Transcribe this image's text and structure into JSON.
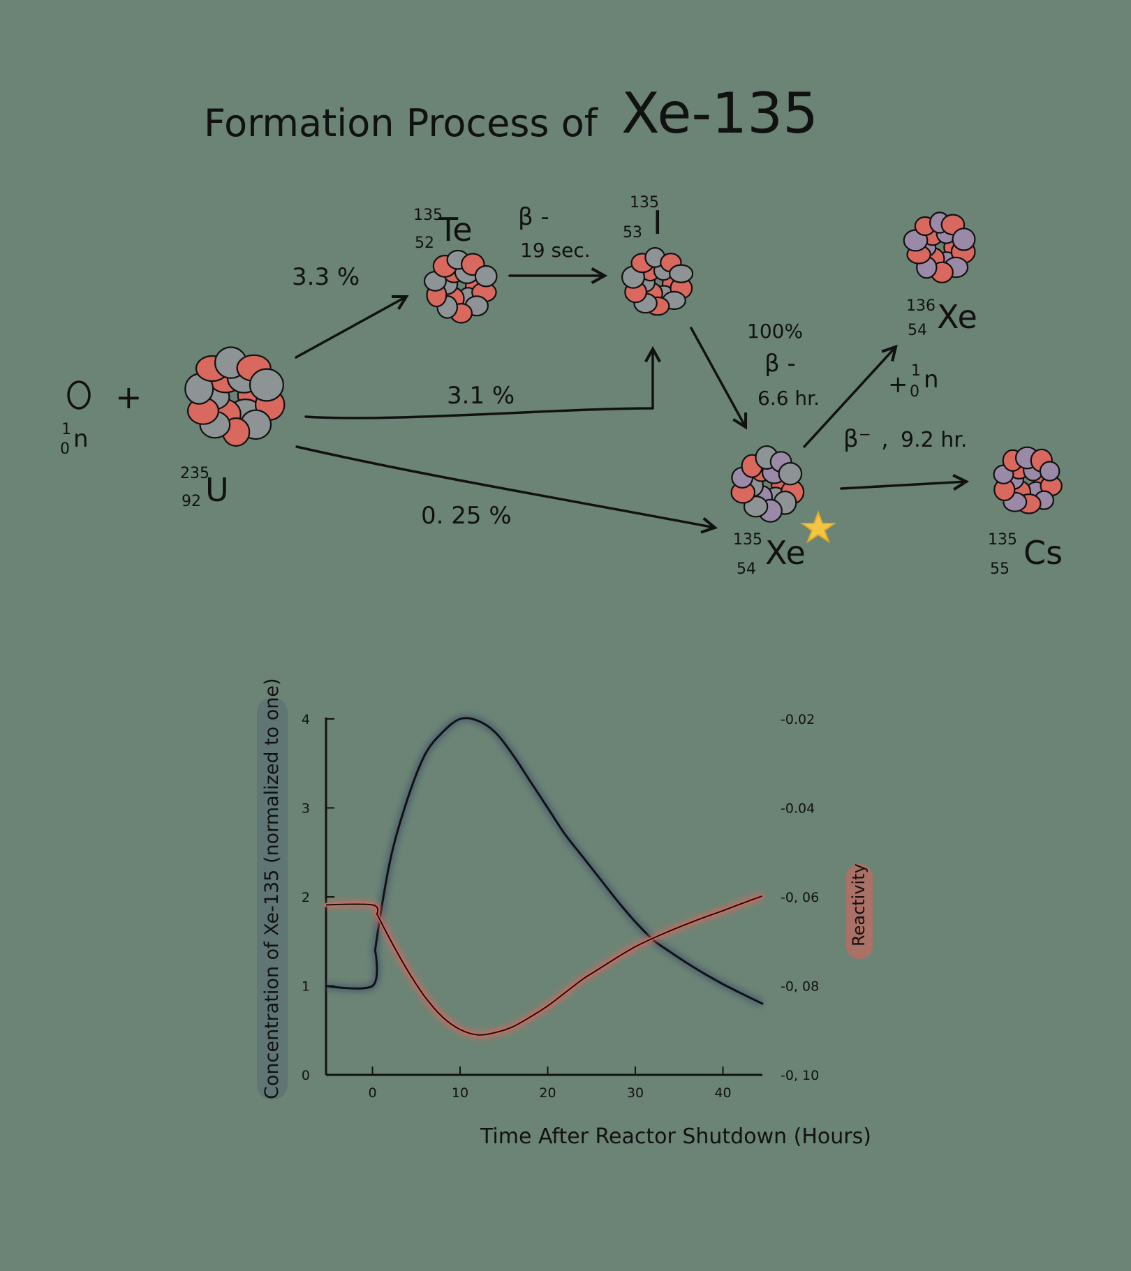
{
  "title": {
    "prefix": "Formation Process of",
    "emphasis": "Xe-135"
  },
  "colors": {
    "background": "#6c8475",
    "proton": "#d9685e",
    "neutron_gray": "#8e9496",
    "neutron_purple": "#9a8aa8",
    "star": "#f4c542",
    "concentration_line": "#111111",
    "concentration_glow": "#3d5070",
    "reactivity_line": "#d9685e"
  },
  "diagram": {
    "neutron": {
      "mass": "1",
      "atomic": "0",
      "symbol": "n"
    },
    "plus": "+",
    "u235": {
      "mass": "235",
      "atomic": "92",
      "symbol": "U"
    },
    "te135": {
      "mass": "135",
      "atomic": "52",
      "symbol": "Te"
    },
    "i135": {
      "mass": "135",
      "atomic": "53",
      "symbol": "I"
    },
    "xe135": {
      "mass": "135",
      "atomic": "54",
      "symbol": "Xe",
      "marker": "star-icon"
    },
    "xe136": {
      "mass": "136",
      "atomic": "54",
      "symbol": "Xe"
    },
    "cs135": {
      "mass": "135",
      "atomic": "55",
      "symbol": "Cs"
    },
    "yields": {
      "to_te": "3.3 %",
      "to_i": "3.1 %",
      "to_xe": "0. 25 %"
    },
    "decay_te_i": {
      "mode": "β -",
      "time": "19 sec."
    },
    "decay_i_xe": {
      "yield": "100%",
      "mode": "β -",
      "time": "6.6 hr."
    },
    "absorb": {
      "plus": "+",
      "mass": "1",
      "atomic": "0",
      "symbol": "n"
    },
    "decay_xe_cs": {
      "mode": "β⁻",
      "sep": ",",
      "time": "9.2 hr."
    }
  },
  "chart_data": {
    "type": "line",
    "xlabel": "Time After Reactor Shutdown (Hours)",
    "ylabel_left": "Concentration of Xe-135 (normalized to one)",
    "ylabel_right": "Reactivity",
    "x_ticks": [
      "0",
      "10",
      "20",
      "30",
      "40"
    ],
    "y_left_ticks": [
      "0",
      "1",
      "2",
      "3",
      "4"
    ],
    "y_right_ticks": [
      "-0.02",
      "-0.04",
      "-0, 06",
      "-0, 08",
      "-0, 10"
    ],
    "xlim": [
      -5.3,
      44.5
    ],
    "ylim_left": [
      0,
      4
    ],
    "ylim_right": [
      -0.1,
      -0.02
    ],
    "series": [
      {
        "name": "Concentration of Xe-135 (normalized to one)",
        "axis": "left",
        "x": [
          -5.3,
          0,
          0.3,
          2,
          4,
          6,
          8,
          10,
          12,
          14,
          16,
          18,
          20,
          22,
          24,
          26,
          28,
          30,
          32,
          34,
          36,
          38,
          40,
          42,
          44.5
        ],
        "y": [
          1.0,
          1.0,
          1.4,
          2.4,
          3.1,
          3.6,
          3.85,
          4.0,
          3.98,
          3.85,
          3.6,
          3.3,
          3.0,
          2.7,
          2.45,
          2.2,
          1.95,
          1.72,
          1.52,
          1.38,
          1.25,
          1.13,
          1.02,
          0.92,
          0.8
        ]
      },
      {
        "name": "Reactivity",
        "axis": "right",
        "x": [
          -5.3,
          0,
          0.5,
          2,
          4,
          6,
          8,
          10,
          12,
          14,
          16,
          18,
          20,
          22,
          24,
          26,
          28,
          30,
          32,
          34,
          36,
          38,
          40,
          42,
          44.5
        ],
        "y": [
          -0.0618,
          -0.0618,
          -0.0638,
          -0.0695,
          -0.0765,
          -0.0825,
          -0.087,
          -0.0898,
          -0.091,
          -0.0905,
          -0.0892,
          -0.087,
          -0.0845,
          -0.0815,
          -0.0785,
          -0.076,
          -0.0735,
          -0.0712,
          -0.0693,
          -0.0676,
          -0.066,
          -0.0645,
          -0.0631,
          -0.0616,
          -0.0598
        ]
      }
    ]
  }
}
